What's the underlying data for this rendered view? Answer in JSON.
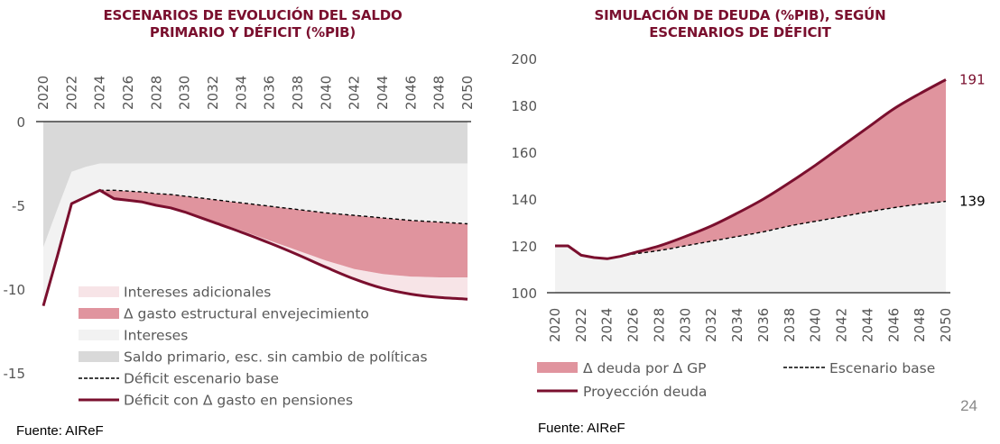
{
  "chart_data": [
    {
      "type": "area",
      "title": "ESCENARIOS DE EVOLUCIÓN DEL SALDO PRIMARIO Y DÉFICIT (%PIB)",
      "xlabel": "",
      "ylabel": "",
      "ylim": [
        -15,
        0
      ],
      "yticks": [
        "0",
        "-5",
        "-10",
        "-15"
      ],
      "ytick_values": [
        0,
        -5,
        -10,
        -15
      ],
      "x_tick_labels": [
        "2020",
        "2022",
        "2024",
        "2026",
        "2028",
        "2030",
        "2032",
        "2034",
        "2036",
        "2038",
        "2040",
        "2042",
        "2044",
        "2046",
        "2048",
        "2050"
      ],
      "x": [
        2020,
        2021,
        2022,
        2023,
        2024,
        2025,
        2026,
        2027,
        2028,
        2029,
        2030,
        2032,
        2034,
        2036,
        2038,
        2040,
        2042,
        2044,
        2046,
        2048,
        2050
      ],
      "series": [
        {
          "name": "Saldo primario, esc. sin cambio de políticas",
          "kind": "area",
          "color": "#d9d9d9",
          "values": [
            -7.5,
            -5.2,
            -3.0,
            -2.7,
            -2.5,
            -2.5,
            -2.5,
            -2.5,
            -2.5,
            -2.5,
            -2.5,
            -2.5,
            -2.5,
            -2.5,
            -2.5,
            -2.5,
            -2.5,
            -2.5,
            -2.5,
            -2.5,
            -2.5
          ]
        },
        {
          "name": "Déficit escenario base",
          "kind": "dashed-line",
          "color": "#000000",
          "values": [
            -11.0,
            -8.0,
            -4.9,
            -4.5,
            -4.1,
            -4.1,
            -4.15,
            -4.2,
            -4.3,
            -4.35,
            -4.45,
            -4.65,
            -4.85,
            -5.05,
            -5.25,
            -5.45,
            -5.6,
            -5.75,
            -5.9,
            -6.0,
            -6.1
          ]
        },
        {
          "name": "Δ gasto estructural envejecimiento (lower edge)",
          "kind": "area-edge",
          "color": "#e0949e",
          "values": [
            -11.0,
            -8.0,
            -4.9,
            -4.5,
            -4.1,
            -4.6,
            -4.7,
            -4.8,
            -5.0,
            -5.15,
            -5.4,
            -5.95,
            -6.5,
            -7.1,
            -7.7,
            -8.3,
            -8.8,
            -9.1,
            -9.25,
            -9.3,
            -9.3
          ]
        },
        {
          "name": "Déficit con Δ gasto en pensiones",
          "kind": "line",
          "color": "#7a0f2e",
          "values": [
            -11.0,
            -8.0,
            -4.9,
            -4.5,
            -4.1,
            -4.6,
            -4.7,
            -4.8,
            -5.0,
            -5.15,
            -5.4,
            -6.0,
            -6.6,
            -7.25,
            -7.95,
            -8.7,
            -9.4,
            -9.95,
            -10.3,
            -10.5,
            -10.6
          ]
        }
      ],
      "legend": [
        {
          "label": "Intereses adicionales",
          "swatch": "area",
          "color": "#f7e4e7"
        },
        {
          "label": "Δ gasto estructural envejecimiento",
          "swatch": "area",
          "color": "#e0949e"
        },
        {
          "label": "Intereses",
          "swatch": "area",
          "color": "#f2f2f2"
        },
        {
          "label": "Saldo primario, esc. sin cambio de políticas",
          "swatch": "area",
          "color": "#d9d9d9"
        },
        {
          "label": "Déficit escenario base",
          "swatch": "dashed",
          "color": "#000000"
        },
        {
          "label": "Déficit con Δ gasto en pensiones",
          "swatch": "line",
          "color": "#7a0f2e"
        }
      ],
      "legend_position": "bottom-inside",
      "grid": false
    },
    {
      "type": "area",
      "title": "SIMULACIÓN DE DEUDA (%PIB), SEGÚN ESCENARIOS DE DÉFICIT",
      "xlabel": "",
      "ylabel": "",
      "ylim": [
        100,
        200
      ],
      "yticks": [
        "200",
        "180",
        "160",
        "140",
        "120",
        "100"
      ],
      "ytick_values": [
        200,
        180,
        160,
        140,
        120,
        100
      ],
      "x_tick_labels": [
        "2020",
        "2022",
        "2024",
        "2026",
        "2028",
        "2030",
        "2032",
        "2034",
        "2036",
        "2038",
        "2040",
        "2042",
        "2044",
        "2046",
        "2048",
        "2050"
      ],
      "x": [
        2020,
        2021,
        2022,
        2023,
        2024,
        2025,
        2026,
        2028,
        2030,
        2032,
        2034,
        2036,
        2038,
        2040,
        2042,
        2044,
        2046,
        2048,
        2050
      ],
      "series": [
        {
          "name": "Escenario base",
          "kind": "dashed-line",
          "color": "#000000",
          "values": [
            120,
            120,
            116,
            115,
            114.5,
            115.5,
            116.5,
            118,
            120,
            122,
            124,
            126,
            128.5,
            130.5,
            132.5,
            134.5,
            136.3,
            137.8,
            139
          ]
        },
        {
          "name": "Proyección deuda",
          "kind": "line",
          "color": "#7a0f2e",
          "values": [
            120,
            120,
            116,
            115,
            114.5,
            115.5,
            117,
            120,
            124,
            128.5,
            134,
            140,
            147,
            154.5,
            162.5,
            170.5,
            178.5,
            185,
            191
          ]
        }
      ],
      "annotations": [
        {
          "text": "191",
          "color": "#7a0f2e"
        },
        {
          "text": "139",
          "color": "#000000"
        }
      ],
      "legend": [
        {
          "label": "Δ deuda por Δ GP",
          "swatch": "area",
          "color": "#e0949e"
        },
        {
          "label": "Escenario base",
          "swatch": "dashed",
          "color": "#000000"
        },
        {
          "label": "Proyección deuda",
          "swatch": "line",
          "color": "#7a0f2e"
        }
      ],
      "legend_position": "bottom",
      "grid": false
    }
  ],
  "titles": {
    "left_line1": "ESCENARIOS DE EVOLUCIÓN DEL SALDO",
    "left_line2": "PRIMARIO Y DÉFICIT (%PIB)",
    "right_line1": "SIMULACIÓN DE DEUDA (%PIB), SEGÚN",
    "right_line2": "ESCENARIOS DE DÉFICIT"
  },
  "source_left": "Fuente: AIReF",
  "source_right": "Fuente: AIReF",
  "page_number": "24",
  "colors": {
    "accent": "#7a0f2e",
    "pink": "#e0949e",
    "light_pink": "#f7e4e7",
    "light_gray": "#f2f2f2",
    "gray": "#d9d9d9"
  }
}
